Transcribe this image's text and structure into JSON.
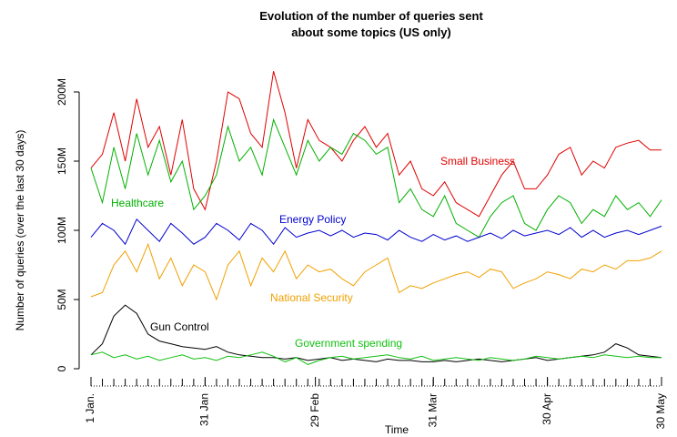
{
  "chart_data": {
    "type": "line",
    "title": "Evolution of the number of queries sent",
    "subtitle": "about some topics (US only)",
    "x_label": "Time",
    "y_label": "Number of queries (over the last 30 days)",
    "x": [
      1,
      4,
      7,
      10,
      13,
      16,
      19,
      22,
      25,
      28,
      31,
      34,
      37,
      40,
      43,
      46,
      49,
      52,
      55,
      58,
      61,
      64,
      67,
      70,
      73,
      76,
      79,
      82,
      85,
      88,
      91,
      94,
      97,
      100,
      103,
      106,
      109,
      112,
      115,
      118,
      121,
      124,
      127,
      130,
      133,
      136,
      139,
      142,
      145,
      148,
      151
    ],
    "xlim": [
      1,
      151
    ],
    "xticks": [
      {
        "value": 1,
        "label": "1 Jan."
      },
      {
        "value": 31,
        "label": "31 Jan"
      },
      {
        "value": 60,
        "label": "29 Feb"
      },
      {
        "value": 91,
        "label": "31 Mar"
      },
      {
        "value": 121,
        "label": "30 Apr"
      },
      {
        "value": 151,
        "label": "30 May"
      }
    ],
    "ylim": [
      0,
      200
    ],
    "yticks": [
      {
        "value": 0,
        "label": "0"
      },
      {
        "value": 50,
        "label": "50M"
      },
      {
        "value": 100,
        "label": "100M"
      },
      {
        "value": 150,
        "label": "150M"
      },
      {
        "value": 200,
        "label": "200M"
      }
    ],
    "series": [
      {
        "name": "Small Business",
        "color": "#e00000",
        "values": [
          145,
          155,
          185,
          150,
          195,
          160,
          175,
          140,
          180,
          130,
          115,
          150,
          200,
          195,
          170,
          160,
          215,
          185,
          145,
          180,
          165,
          160,
          150,
          165,
          175,
          160,
          170,
          140,
          150,
          130,
          125,
          135,
          120,
          115,
          110,
          125,
          140,
          150,
          130,
          130,
          140,
          155,
          160,
          140,
          150,
          145,
          160,
          163,
          165,
          158,
          158
        ]
      },
      {
        "name": "Healthcare",
        "color": "#00b000",
        "values": [
          145,
          120,
          160,
          130,
          170,
          140,
          165,
          135,
          150,
          115,
          125,
          140,
          175,
          150,
          160,
          140,
          180,
          160,
          140,
          165,
          150,
          160,
          155,
          170,
          165,
          155,
          160,
          120,
          130,
          115,
          110,
          125,
          105,
          100,
          95,
          110,
          120,
          125,
          105,
          100,
          115,
          125,
          120,
          105,
          115,
          110,
          125,
          115,
          120,
          110,
          122
        ]
      },
      {
        "name": "Energy Policy",
        "color": "#0000d0",
        "values": [
          95,
          105,
          100,
          90,
          108,
          100,
          92,
          105,
          98,
          90,
          95,
          105,
          100,
          93,
          105,
          100,
          90,
          102,
          95,
          98,
          100,
          96,
          100,
          95,
          98,
          97,
          93,
          100,
          95,
          92,
          97,
          93,
          96,
          92,
          95,
          98,
          94,
          100,
          96,
          98,
          100,
          97,
          102,
          95,
          100,
          95,
          98,
          100,
          97,
          100,
          103
        ]
      },
      {
        "name": "National Security",
        "color": "#f0a000",
        "values": [
          52,
          55,
          75,
          85,
          70,
          90,
          65,
          80,
          60,
          75,
          70,
          50,
          75,
          85,
          60,
          80,
          70,
          85,
          65,
          75,
          70,
          72,
          65,
          60,
          70,
          75,
          80,
          55,
          60,
          58,
          62,
          65,
          68,
          70,
          66,
          72,
          70,
          58,
          62,
          65,
          70,
          68,
          65,
          72,
          70,
          75,
          72,
          78,
          78,
          80,
          85
        ]
      },
      {
        "name": "Gun Control",
        "color": "#000000",
        "values": [
          10,
          18,
          38,
          46,
          40,
          25,
          20,
          18,
          16,
          15,
          14,
          16,
          12,
          10,
          9,
          8,
          8,
          7,
          8,
          6,
          7,
          8,
          6,
          7,
          6,
          5,
          7,
          6,
          6,
          5,
          5,
          6,
          5,
          6,
          7,
          6,
          5,
          6,
          7,
          8,
          6,
          7,
          8,
          9,
          10,
          12,
          18,
          15,
          10,
          9,
          8
        ]
      },
      {
        "name": "Government spending",
        "color": "#10c010",
        "values": [
          10,
          12,
          8,
          10,
          7,
          9,
          6,
          8,
          10,
          7,
          8,
          6,
          9,
          8,
          10,
          12,
          9,
          5,
          8,
          3,
          6,
          8,
          9,
          7,
          8,
          9,
          10,
          8,
          7,
          9,
          6,
          7,
          8,
          7,
          6,
          8,
          7,
          6,
          7,
          9,
          8,
          7,
          8,
          9,
          8,
          10,
          9,
          8,
          9,
          8,
          8
        ]
      }
    ]
  }
}
